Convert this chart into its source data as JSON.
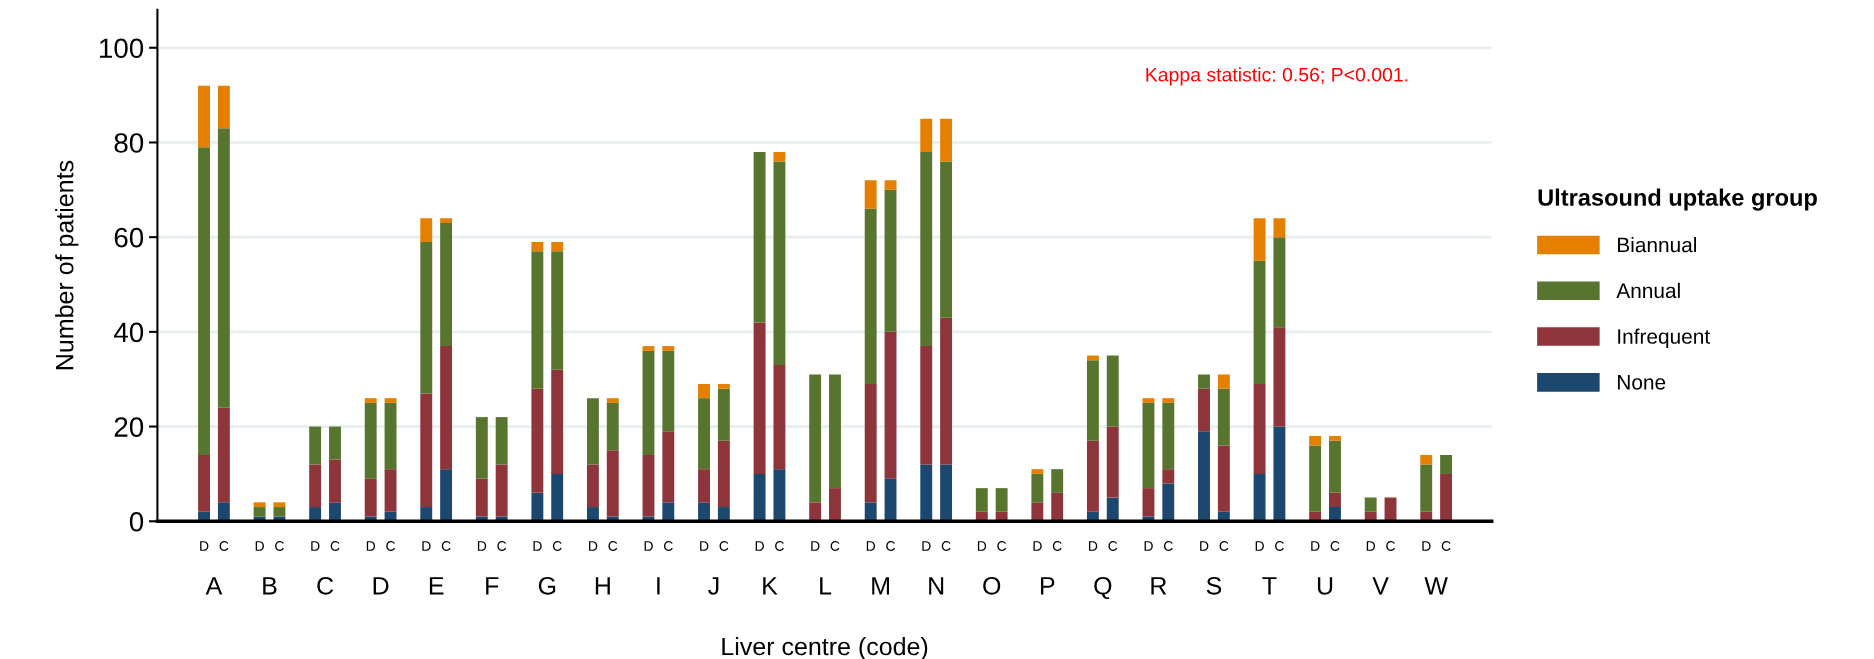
{
  "chart_data": {
    "type": "bar",
    "stacked": true,
    "xlabel": "Liver centre (code)",
    "ylabel": "Number of patients",
    "legend_title": "Ultrasound uptake group",
    "categories": [
      "D",
      "C",
      "D",
      "C",
      "D",
      "C",
      "D",
      "C",
      "D",
      "C",
      "D",
      "C",
      "D",
      "C",
      "D",
      "C",
      "D",
      "C",
      "D",
      "C",
      "D",
      "C",
      "D",
      "C",
      "D",
      "C",
      "D",
      "C",
      "D",
      "C",
      "D",
      "C",
      "D",
      "C",
      "D",
      "C",
      "D",
      "C",
      "D",
      "C",
      "D",
      "C",
      "D",
      "C",
      "D",
      "C"
    ],
    "series": [
      {
        "name": "None",
        "color": "#1c476e",
        "values": [
          2,
          4,
          1,
          1,
          3,
          4,
          1,
          2,
          3,
          11,
          1,
          1,
          6,
          10,
          3,
          1,
          1,
          4,
          4,
          3,
          10,
          11,
          0,
          0,
          4,
          9,
          12,
          12,
          0,
          0,
          0,
          0,
          2,
          5,
          1,
          8,
          19,
          2,
          10,
          20,
          0,
          3,
          0,
          0,
          0,
          0
        ]
      },
      {
        "name": "Infrequent",
        "color": "#8e353c",
        "values": [
          12,
          20,
          0,
          0,
          9,
          9,
          8,
          9,
          24,
          26,
          8,
          11,
          22,
          22,
          9,
          14,
          13,
          15,
          7,
          14,
          32,
          22,
          4,
          7,
          25,
          31,
          25,
          31,
          2,
          2,
          4,
          6,
          15,
          15,
          6,
          3,
          9,
          14,
          19,
          21,
          2,
          3,
          2,
          5,
          2,
          10
        ]
      },
      {
        "name": "Annual",
        "color": "#58752f",
        "values": [
          65,
          59,
          2,
          2,
          8,
          7,
          16,
          14,
          32,
          26,
          13,
          10,
          29,
          25,
          14,
          10,
          22,
          17,
          15,
          11,
          36,
          43,
          27,
          24,
          37,
          30,
          41,
          33,
          5,
          5,
          6,
          5,
          17,
          15,
          18,
          14,
          3,
          12,
          26,
          19,
          14,
          11,
          3,
          0,
          10,
          4
        ]
      },
      {
        "name": "Biannual",
        "color": "#e57f00",
        "values": [
          13,
          9,
          1,
          1,
          0,
          0,
          1,
          1,
          5,
          1,
          0,
          0,
          2,
          2,
          0,
          1,
          1,
          1,
          3,
          1,
          0,
          2,
          0,
          0,
          6,
          2,
          7,
          9,
          0,
          0,
          1,
          0,
          1,
          0,
          1,
          1,
          0,
          3,
          9,
          4,
          2,
          1,
          0,
          0,
          2,
          0
        ]
      }
    ],
    "ylim": [
      0,
      108
    ],
    "yticks": [
      0,
      20,
      40,
      60,
      80,
      100
    ],
    "grid": "y",
    "legend": "right",
    "annotations": [
      "Kappa statistic: 0.56; P<0.001.",
      "A",
      "B",
      "C",
      "D",
      "E",
      "F",
      "G",
      "H",
      "I",
      "J",
      "K",
      "L",
      "M",
      "N",
      "O",
      "P",
      "Q",
      "R",
      "S",
      "T",
      "U",
      "V",
      "W"
    ]
  }
}
